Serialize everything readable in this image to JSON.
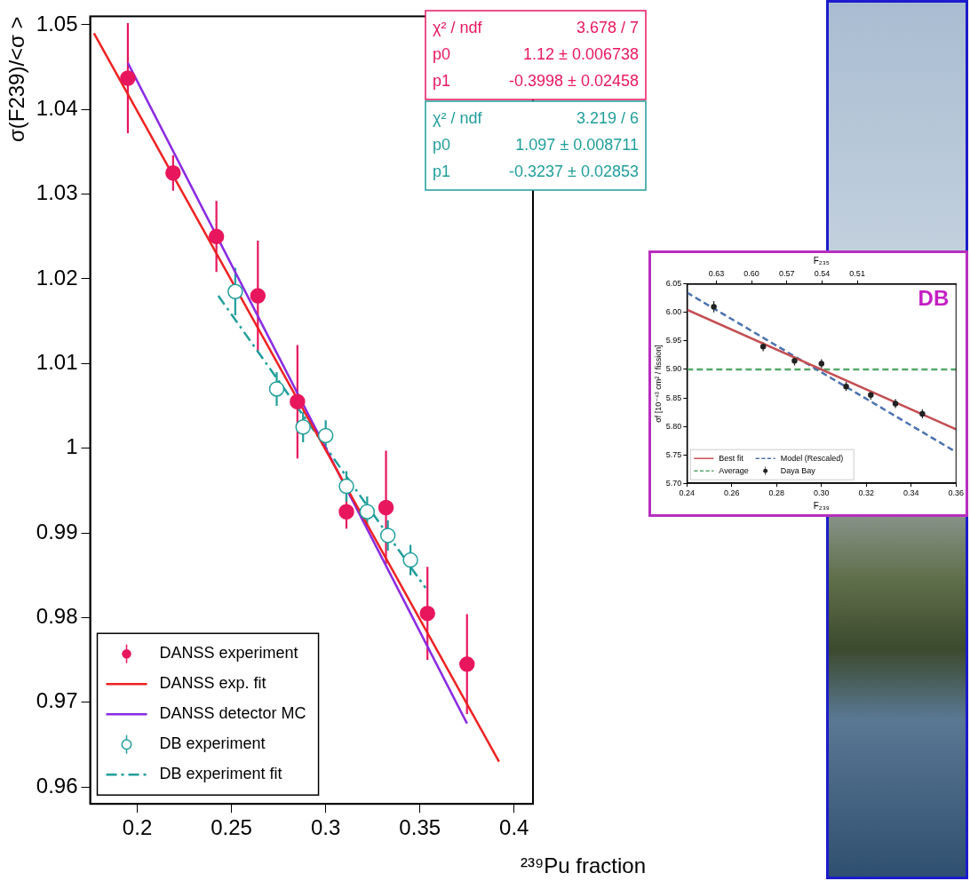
{
  "chart_data": [
    {
      "type": "scatter",
      "y_label": "σ(F239)/<σ >",
      "x_label": "²³⁹Pu fraction",
      "xlim": [
        0.175,
        0.41
      ],
      "xticks": [
        0.2,
        0.25,
        0.3,
        0.35,
        0.4
      ],
      "ylim": [
        0.958,
        1.051
      ],
      "yticks": [
        0.96,
        0.97,
        0.98,
        0.99,
        1,
        1.01,
        1.02,
        1.03,
        1.04,
        1.05
      ],
      "grid": false,
      "legend": "lower left",
      "series": [
        {
          "name": "DANSS experiment",
          "type": "scatter",
          "color": "#e8175d",
          "marker": "circle",
          "x": [
            0.195,
            0.219,
            0.242,
            0.264,
            0.285,
            0.311,
            0.332,
            0.354,
            0.375
          ],
          "values": [
            1.0437,
            1.0325,
            1.025,
            1.018,
            1.0055,
            0.9925,
            0.993,
            0.9805,
            0.9745
          ],
          "errors": [
            0.0065,
            0.0021,
            0.0042,
            0.0065,
            0.0067,
            0.002,
            0.0067,
            0.0055,
            0.0059
          ]
        },
        {
          "name": "DANSS exp. fit",
          "type": "line",
          "color": "#ee2222",
          "line_style": "solid",
          "x": [
            0.177,
            0.392
          ],
          "values": [
            1.049,
            0.963
          ]
        },
        {
          "name": "DANSS detector MC",
          "type": "line",
          "color": "#8a2be2",
          "line_style": "solid",
          "x": [
            0.195,
            0.375
          ],
          "values": [
            1.0455,
            0.9675
          ]
        },
        {
          "name": "DB experiment",
          "type": "scatter",
          "color": "#1f9e9a",
          "marker": "open_circle",
          "x": [
            0.252,
            0.274,
            0.288,
            0.3,
            0.311,
            0.322,
            0.333,
            0.345
          ],
          "values": [
            1.0185,
            1.007,
            1.0025,
            1.0015,
            0.9955,
            0.9925,
            0.9897,
            0.9868
          ],
          "errors": [
            0.0028,
            0.002,
            0.0018,
            0.0018,
            0.0018,
            0.0018,
            0.0018,
            0.0018
          ]
        },
        {
          "name": "DB experiment fit",
          "type": "line",
          "color": "#1f9e9a",
          "line_style": "dashdot",
          "x": [
            0.243,
            0.353
          ],
          "values": [
            1.018,
            0.9835
          ]
        }
      ],
      "stats_boxes": [
        {
          "color": "#e8175d",
          "rows": [
            [
              "χ² / ndf",
              "3.678 / 7"
            ],
            [
              "p0",
              "1.12 ± 0.006738"
            ],
            [
              "p1",
              "-0.3998 ± 0.02458"
            ]
          ]
        },
        {
          "color": "#1f9e9a",
          "rows": [
            [
              "χ² / ndf",
              "3.219 / 6"
            ],
            [
              "p0",
              "1.097 ± 0.008711"
            ],
            [
              "p1",
              "-0.3237 ± 0.02853"
            ]
          ]
        }
      ]
    },
    {
      "type": "scatter",
      "title": "DB",
      "x_label": "F₂₃₉",
      "x2_label": "F₂₃₅",
      "y_label": "σf [10⁻⁴³ cm² / fission]",
      "xlim": [
        0.24,
        0.36
      ],
      "xticks": [
        0.24,
        0.26,
        0.28,
        {
          "value": 0.3,
          "label": "0.30"
        },
        0.32,
        0.34,
        0.36
      ],
      "x2lim": [
        0.655,
        0.426
      ],
      "x2ticks": [
        0.63,
        {
          "value": 0.6,
          "label": "0.60"
        },
        0.57,
        0.54,
        0.51
      ],
      "ylim": [
        5.7,
        6.05
      ],
      "yticks": [
        {
          "value": 5.7,
          "label": "5.70"
        },
        5.75,
        {
          "value": 5.8,
          "label": "5.80"
        },
        5.85,
        {
          "value": 5.9,
          "label": "5.90"
        },
        5.95,
        {
          "value": 6,
          "label": "6.00"
        },
        6.05
      ],
      "grid": false,
      "legend": "lower left",
      "series": [
        {
          "name": "Best fit",
          "type": "line",
          "color": "#c44e52",
          "line_style": "solid",
          "x": [
            0.24,
            0.36
          ],
          "values": [
            6.005,
            5.795
          ]
        },
        {
          "name": "Model (Rescaled)",
          "type": "line",
          "color": "#4c72b0",
          "line_style": "dashed",
          "x": [
            0.24,
            0.36
          ],
          "values": [
            6.035,
            5.755
          ]
        },
        {
          "name": "Average",
          "type": "line",
          "color": "#55a868",
          "line_style": "dashed",
          "x": [
            0.24,
            0.36
          ],
          "values": [
            5.9,
            5.9
          ]
        },
        {
          "name": "Daya Bay",
          "type": "scatter",
          "color": "#222222",
          "marker": "circle",
          "x": [
            0.252,
            0.274,
            0.288,
            0.3,
            0.311,
            0.322,
            0.333,
            0.345
          ],
          "values": [
            6.01,
            5.94,
            5.915,
            5.91,
            5.87,
            5.855,
            5.84,
            5.822
          ],
          "errors": [
            0.01,
            0.008,
            0.008,
            0.008,
            0.008,
            0.008,
            0.008,
            0.008
          ]
        }
      ]
    }
  ]
}
